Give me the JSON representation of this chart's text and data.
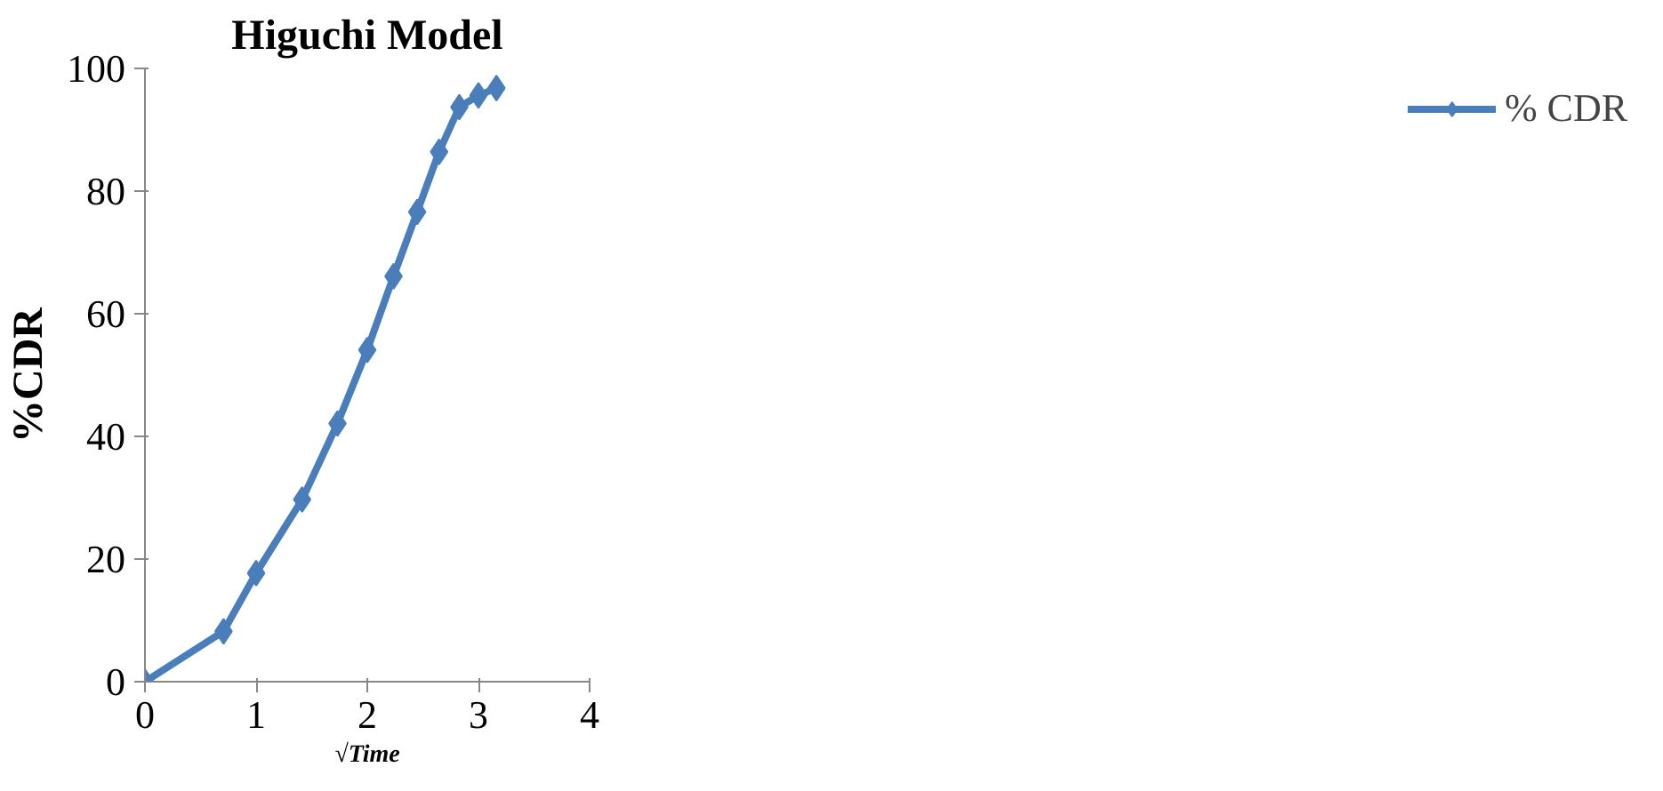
{
  "chart_data": {
    "type": "line",
    "title": "Higuchi Model",
    "xlabel": "√Time",
    "ylabel": "%CDR",
    "x": [
      0,
      0.707,
      1,
      1.414,
      1.732,
      2,
      2.236,
      2.449,
      2.646,
      2.828,
      3,
      3.162
    ],
    "series": [
      {
        "name": "% CDR",
        "color": "#4a7ebb",
        "values": [
          0,
          8.2,
          17.7,
          29.7,
          42.1,
          54.1,
          66.1,
          76.6,
          86.4,
          93.7,
          95.6,
          96.8
        ]
      }
    ],
    "xlim": [
      0,
      4
    ],
    "xticks": [
      0,
      1,
      2,
      3,
      4
    ],
    "ylim": [
      0,
      100
    ],
    "yticks": [
      0,
      20,
      40,
      60,
      80,
      100
    ],
    "grid": false,
    "legend": "right",
    "marker": "diamond",
    "line_style": "solid"
  }
}
